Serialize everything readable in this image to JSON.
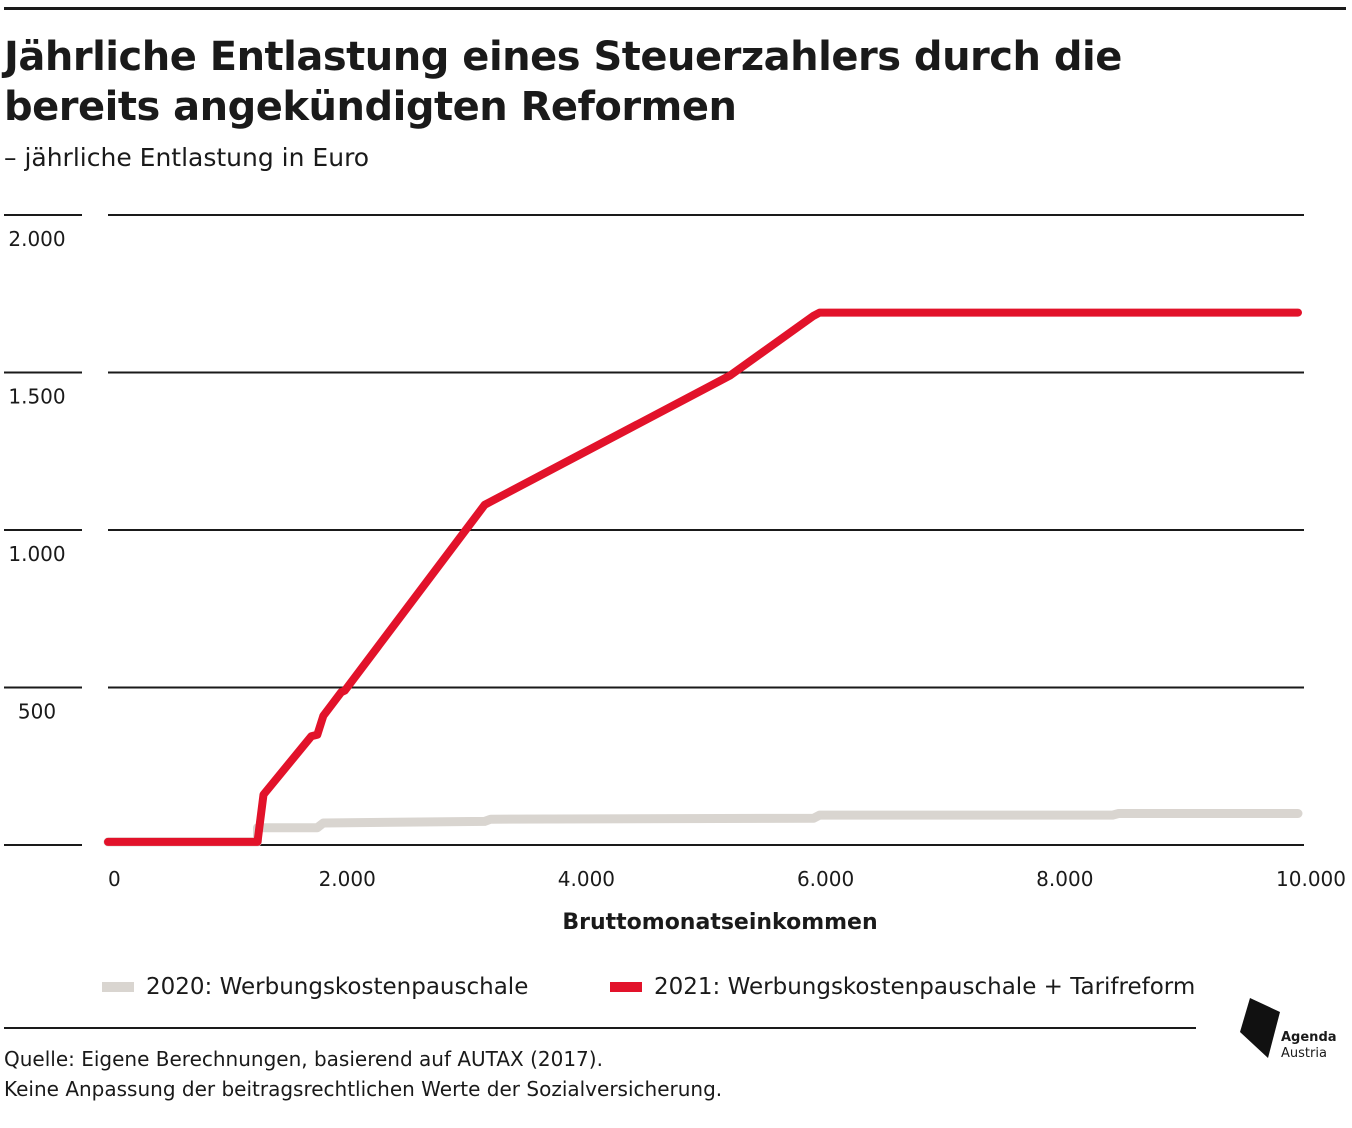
{
  "header": {
    "title": "Jährliche Entlastung eines Steuerzahlers durch die bereits angekündigten Reformen",
    "subtitle": "– jährliche Entlastung in Euro"
  },
  "chart_data": {
    "type": "line",
    "xlabel": "Bruttomonatseinkommen",
    "ylabel": "",
    "xlim": [
      0,
      10000
    ],
    "ylim": [
      0,
      2000
    ],
    "x_ticks": [
      0,
      2000,
      4000,
      6000,
      8000,
      10000
    ],
    "x_tick_labels": [
      "0",
      "2.000",
      "4.000",
      "6.000",
      "8.000",
      "10.000"
    ],
    "y_ticks": [
      500,
      1000,
      1500,
      2000
    ],
    "y_tick_labels": [
      "500",
      "1.000",
      "1.500",
      "2.000"
    ],
    "grid": true,
    "legend_position": "bottom",
    "series": [
      {
        "name": "2020: Werbungskostenpauschale",
        "color": "#d9d5d0",
        "points": [
          [
            0,
            10
          ],
          [
            1250,
            10
          ],
          [
            1250,
            55
          ],
          [
            1750,
            55
          ],
          [
            1800,
            70
          ],
          [
            3150,
            75
          ],
          [
            3200,
            82
          ],
          [
            5900,
            85
          ],
          [
            5950,
            95
          ],
          [
            8400,
            95
          ],
          [
            8450,
            100
          ],
          [
            9950,
            100
          ]
        ]
      },
      {
        "name": "2021: Werbungskostenpauschale + Tarifreform",
        "color": "#e2122a",
        "points": [
          [
            0,
            10
          ],
          [
            1250,
            10
          ],
          [
            1300,
            160
          ],
          [
            1700,
            345
          ],
          [
            1750,
            350
          ],
          [
            1800,
            410
          ],
          [
            1950,
            485
          ],
          [
            1980,
            490
          ],
          [
            3150,
            1080
          ],
          [
            3200,
            1090
          ],
          [
            5200,
            1490
          ],
          [
            5900,
            1680
          ],
          [
            5950,
            1690
          ],
          [
            8450,
            1690
          ],
          [
            9950,
            1690
          ]
        ]
      }
    ]
  },
  "footer": {
    "source_line1": "Quelle: Eigene Berechnungen, basierend auf AUTAX (2017).",
    "source_line2": "Keine Anpassung der beitragsrechtlichen Werte der Sozialversicherung.",
    "logo_line1": "Agenda",
    "logo_line2": "Austria"
  }
}
